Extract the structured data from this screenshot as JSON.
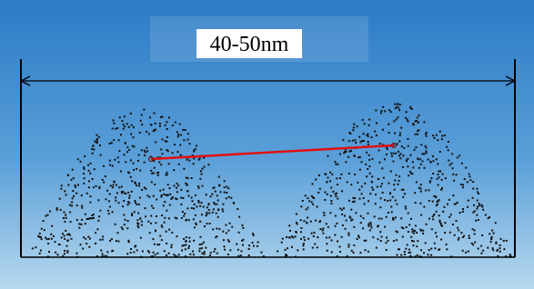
{
  "label": "40-50nm"
}
